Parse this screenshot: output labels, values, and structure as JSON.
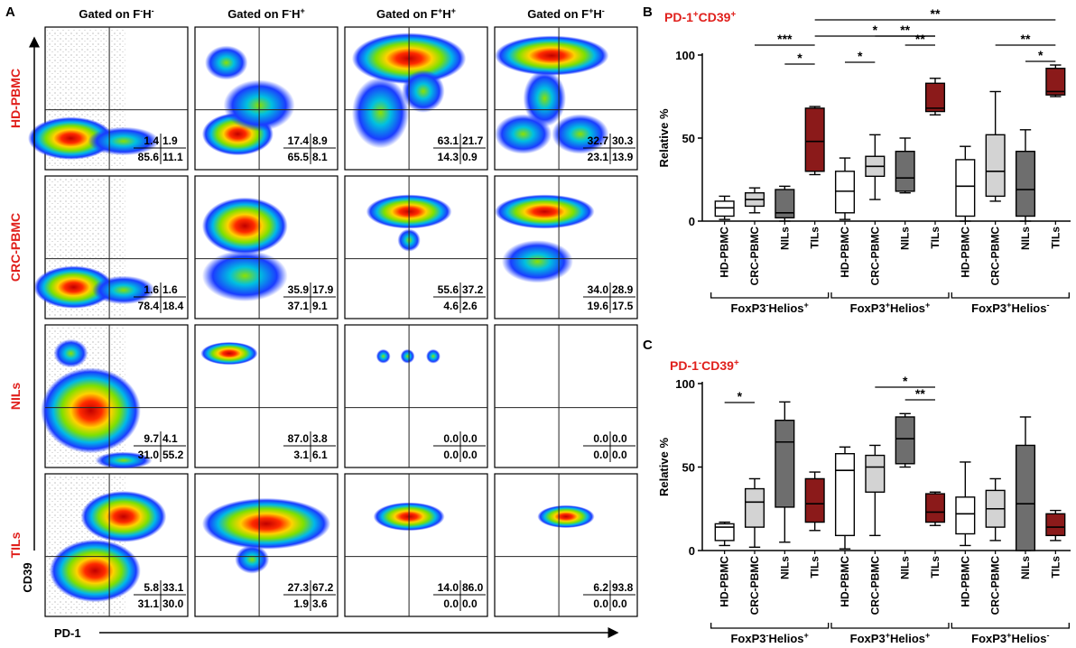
{
  "panel_labels": {
    "a": "A",
    "b": "B",
    "c": "C"
  },
  "panel_a": {
    "column_headers": [
      {
        "base": "Gated on F",
        "s1": "-",
        "mid": "H",
        "s2": "-"
      },
      {
        "base": "Gated on F",
        "s1": "-",
        "mid": "H",
        "s2": "+"
      },
      {
        "base": "Gated on F",
        "s1": "+",
        "mid": "H",
        "s2": "+"
      },
      {
        "base": "Gated on F",
        "s1": "+",
        "mid": "H",
        "s2": "-"
      }
    ],
    "row_labels": [
      "HD-PBMC",
      "CRC-PBMC",
      "NILs",
      "TILs"
    ],
    "y_axis_label": "CD39",
    "x_axis_label": "PD-1",
    "quadrants": [
      [
        [
          "1.4",
          "1.9",
          "85.6",
          "11.1"
        ],
        [
          "17.4",
          "8.9",
          "65.5",
          "8.1"
        ],
        [
          "63.1",
          "21.7",
          "14.3",
          "0.9"
        ],
        [
          "32.7",
          "30.3",
          "23.1",
          "13.9"
        ]
      ],
      [
        [
          "1.6",
          "1.6",
          "78.4",
          "18.4"
        ],
        [
          "35.9",
          "17.9",
          "37.1",
          "9.1"
        ],
        [
          "55.6",
          "37.2",
          "4.6",
          "2.6"
        ],
        [
          "34.0",
          "28.9",
          "19.6",
          "17.5"
        ]
      ],
      [
        [
          "9.7",
          "4.1",
          "31.0",
          "55.2"
        ],
        [
          "87.0",
          "3.8",
          "3.1",
          "6.1"
        ],
        [
          "0.0",
          "0.0",
          "0.0",
          "0.0"
        ],
        [
          "0.0",
          "0.0",
          "0.0",
          "0.0"
        ]
      ],
      [
        [
          "5.8",
          "33.1",
          "31.1",
          "30.0"
        ],
        [
          "27.3",
          "67.2",
          "1.9",
          "3.6"
        ],
        [
          "14.0",
          "86.0",
          "0.0",
          "0.0"
        ],
        [
          "6.2",
          "93.8",
          "0.0",
          "0.0"
        ]
      ]
    ]
  },
  "chart_data": [
    {
      "type": "box",
      "title": {
        "base": "PD-1",
        "s1": "+",
        "mid": "CD39",
        "s2": "+"
      },
      "ylabel": "Relative %",
      "ylim": [
        0,
        100
      ],
      "yticks": [
        "0",
        "50",
        "100"
      ],
      "categories": [
        "HD-PBMC",
        "CRC-PBMC",
        "NILs",
        "TILs"
      ],
      "groups": [
        {
          "base": "FoxP3",
          "s1": "-",
          "mid": "Helios",
          "s2": "+"
        },
        {
          "base": "FoxP3",
          "s1": "+",
          "mid": "Helios",
          "s2": "+"
        },
        {
          "base": "FoxP3",
          "s1": "+",
          "mid": "Helios",
          "s2": "-"
        }
      ],
      "boxes": [
        {
          "group": 0,
          "cat": 0,
          "min": 1,
          "q1": 3,
          "median": 8,
          "q3": 12,
          "max": 15,
          "fill": "#ffffff"
        },
        {
          "group": 0,
          "cat": 1,
          "min": 5,
          "q1": 9,
          "median": 13,
          "q3": 17,
          "max": 20,
          "fill": "#d3d3d3"
        },
        {
          "group": 0,
          "cat": 2,
          "min": 0,
          "q1": 2,
          "median": 5,
          "q3": 19,
          "max": 21,
          "fill": "#6e6e6e"
        },
        {
          "group": 0,
          "cat": 3,
          "min": 28,
          "q1": 30,
          "median": 48,
          "q3": 68,
          "max": 69,
          "fill": "#8b1a1a"
        },
        {
          "group": 1,
          "cat": 0,
          "min": 1,
          "q1": 5,
          "median": 18,
          "q3": 30,
          "max": 38,
          "fill": "#ffffff"
        },
        {
          "group": 1,
          "cat": 1,
          "min": 13,
          "q1": 27,
          "median": 33,
          "q3": 39,
          "max": 52,
          "fill": "#d3d3d3"
        },
        {
          "group": 1,
          "cat": 2,
          "min": 17,
          "q1": 18,
          "median": 26,
          "q3": 42,
          "max": 50,
          "fill": "#6e6e6e"
        },
        {
          "group": 1,
          "cat": 3,
          "min": 64,
          "q1": 66,
          "median": 68,
          "q3": 83,
          "max": 86,
          "fill": "#8b1a1a"
        },
        {
          "group": 2,
          "cat": 0,
          "min": 0,
          "q1": 3,
          "median": 21,
          "q3": 37,
          "max": 45,
          "fill": "#ffffff"
        },
        {
          "group": 2,
          "cat": 1,
          "min": 12,
          "q1": 15,
          "median": 30,
          "q3": 52,
          "max": 78,
          "fill": "#d3d3d3"
        },
        {
          "group": 2,
          "cat": 2,
          "min": 0,
          "q1": 3,
          "median": 19,
          "q3": 42,
          "max": 55,
          "fill": "#6e6e6e"
        },
        {
          "group": 2,
          "cat": 3,
          "min": 75,
          "q1": 76,
          "median": 78,
          "q3": 92,
          "max": 94,
          "fill": "#8b1a1a"
        }
      ],
      "significance": [
        {
          "from": [
            0,
            3
          ],
          "to": [
            2,
            3
          ],
          "label": "**"
        },
        {
          "from": [
            1,
            1
          ],
          "to": [
            1,
            3
          ],
          "label": "**"
        },
        {
          "from": [
            0,
            3
          ],
          "to": [
            1,
            3
          ],
          "label": "*"
        },
        {
          "from": [
            0,
            1
          ],
          "to": [
            0,
            3
          ],
          "label": "***"
        },
        {
          "from": [
            0,
            2
          ],
          "to": [
            0,
            3
          ],
          "label": "*"
        },
        {
          "from": [
            1,
            0
          ],
          "to": [
            1,
            1
          ],
          "label": "*"
        },
        {
          "from": [
            1,
            2
          ],
          "to": [
            1,
            3
          ],
          "label": "**"
        },
        {
          "from": [
            2,
            1
          ],
          "to": [
            2,
            3
          ],
          "label": "**"
        },
        {
          "from": [
            2,
            2
          ],
          "to": [
            2,
            3
          ],
          "label": "*"
        }
      ]
    },
    {
      "type": "box",
      "title": {
        "base": "PD-1",
        "s1": "-",
        "mid": "CD39",
        "s2": "+"
      },
      "ylabel": "Relative %",
      "ylim": [
        0,
        100
      ],
      "yticks": [
        "0",
        "50",
        "100"
      ],
      "categories": [
        "HD-PBMC",
        "CRC-PBMC",
        "NILs",
        "TILs"
      ],
      "groups": [
        {
          "base": "FoxP3",
          "s1": "-",
          "mid": "Helios",
          "s2": "+"
        },
        {
          "base": "FoxP3",
          "s1": "+",
          "mid": "Helios",
          "s2": "+"
        },
        {
          "base": "FoxP3",
          "s1": "+",
          "mid": "Helios",
          "s2": "-"
        }
      ],
      "boxes": [
        {
          "group": 0,
          "cat": 0,
          "min": 3,
          "q1": 6,
          "median": 14,
          "q3": 16,
          "max": 17,
          "fill": "#ffffff"
        },
        {
          "group": 0,
          "cat": 1,
          "min": 2,
          "q1": 14,
          "median": 29,
          "q3": 37,
          "max": 43,
          "fill": "#d3d3d3"
        },
        {
          "group": 0,
          "cat": 2,
          "min": 5,
          "q1": 26,
          "median": 65,
          "q3": 78,
          "max": 89,
          "fill": "#6e6e6e"
        },
        {
          "group": 0,
          "cat": 3,
          "min": 12,
          "q1": 17,
          "median": 28,
          "q3": 43,
          "max": 47,
          "fill": "#8b1a1a"
        },
        {
          "group": 1,
          "cat": 0,
          "min": 1,
          "q1": 9,
          "median": 48,
          "q3": 58,
          "max": 62,
          "fill": "#ffffff"
        },
        {
          "group": 1,
          "cat": 1,
          "min": 9,
          "q1": 35,
          "median": 50,
          "q3": 57,
          "max": 63,
          "fill": "#d3d3d3"
        },
        {
          "group": 1,
          "cat": 2,
          "min": 50,
          "q1": 52,
          "median": 67,
          "q3": 80,
          "max": 82,
          "fill": "#6e6e6e"
        },
        {
          "group": 1,
          "cat": 3,
          "min": 15,
          "q1": 17,
          "median": 23,
          "q3": 34,
          "max": 35,
          "fill": "#8b1a1a"
        },
        {
          "group": 2,
          "cat": 0,
          "min": 3,
          "q1": 10,
          "median": 22,
          "q3": 32,
          "max": 53,
          "fill": "#ffffff"
        },
        {
          "group": 2,
          "cat": 1,
          "min": 6,
          "q1": 14,
          "median": 25,
          "q3": 36,
          "max": 43,
          "fill": "#d3d3d3"
        },
        {
          "group": 2,
          "cat": 2,
          "min": 0,
          "q1": 0,
          "median": 28,
          "q3": 63,
          "max": 80,
          "fill": "#6e6e6e"
        },
        {
          "group": 2,
          "cat": 3,
          "min": 6,
          "q1": 9,
          "median": 14,
          "q3": 22,
          "max": 24,
          "fill": "#8b1a1a"
        }
      ],
      "significance": [
        {
          "from": [
            0,
            0
          ],
          "to": [
            0,
            1
          ],
          "label": "*"
        },
        {
          "from": [
            1,
            1
          ],
          "to": [
            1,
            3
          ],
          "label": "*"
        },
        {
          "from": [
            1,
            2
          ],
          "to": [
            1,
            3
          ],
          "label": "**"
        }
      ]
    }
  ]
}
